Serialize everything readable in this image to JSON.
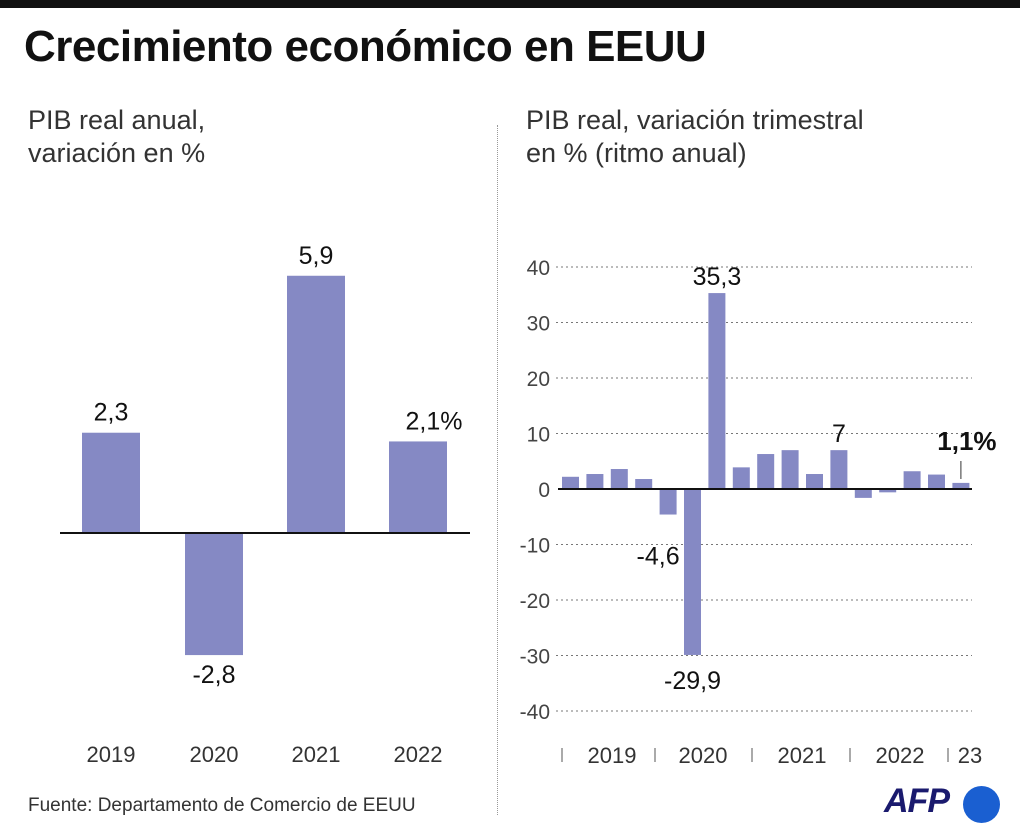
{
  "title": "Crecimiento económico en EEUU",
  "source": "Fuente: Departamento de Comercio de EEUU",
  "logo": "AFP",
  "colors": {
    "bar": "#8589c4",
    "axis": "#111111"
  },
  "chart_data": [
    {
      "type": "bar",
      "subtitle_lines": [
        "PIB real anual,",
        "variación en %"
      ],
      "categories": [
        "2019",
        "2020",
        "2021",
        "2022"
      ],
      "values": [
        2.3,
        -2.8,
        5.9,
        2.1
      ],
      "labels": [
        "2,3",
        "-2,8",
        "5,9",
        "2,1%"
      ]
    },
    {
      "type": "bar",
      "subtitle_lines": [
        "PIB real, variación trimestral",
        "en % (ritmo anual)"
      ],
      "categories": [
        "2019 T1",
        "2019 T2",
        "2019 T3",
        "2019 T4",
        "2020 T1",
        "2020 T2",
        "2020 T3",
        "2020 T4",
        "2021 T1",
        "2021 T2",
        "2021 T3",
        "2021 T4",
        "2022 T1",
        "2022 T2",
        "2022 T3",
        "2022 T4",
        "2023 T1"
      ],
      "values": [
        2.2,
        2.7,
        3.6,
        1.8,
        -4.6,
        -29.9,
        35.3,
        3.9,
        6.3,
        7.0,
        2.7,
        7.0,
        -1.6,
        -0.6,
        3.2,
        2.6,
        1.1
      ],
      "year_labels": [
        "2019",
        "2020",
        "2021",
        "2022",
        "23"
      ],
      "ylim": [
        -40,
        40
      ],
      "yticks": [
        "40",
        "30",
        "20",
        "10",
        "0",
        "-10",
        "-20",
        "-30",
        "-40"
      ],
      "grid": true,
      "annotations": [
        {
          "index": 4,
          "text": "-4,6"
        },
        {
          "index": 5,
          "text": "-29,9"
        },
        {
          "index": 6,
          "text": "35,3"
        },
        {
          "index": 11,
          "text": "7"
        },
        {
          "index": 16,
          "text": "1,1%"
        }
      ]
    }
  ]
}
